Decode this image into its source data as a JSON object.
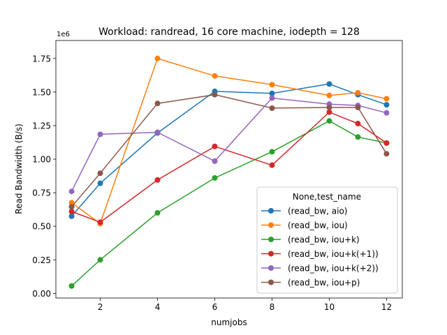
{
  "chart_data": {
    "type": "line",
    "title": "Workload: randread, 16 core machine, iodepth = 128",
    "xlabel": "numjobs",
    "ylabel": "Read Bandwidth (B/s)",
    "y_offset_label": "1e6",
    "xlim": [
      0.45,
      12.55
    ],
    "ylim": [
      -0.0345,
      1.884
    ],
    "x_ticks": [
      2,
      4,
      6,
      8,
      10,
      12
    ],
    "x_tick_labels": [
      "2",
      "4",
      "6",
      "8",
      "10",
      "12"
    ],
    "y_ticks": [
      0,
      0.25,
      0.5,
      0.75,
      1.0,
      1.25,
      1.5,
      1.75
    ],
    "y_tick_labels": [
      "0.00",
      "0.25",
      "0.50",
      "0.75",
      "1.00",
      "1.25",
      "1.50",
      "1.75"
    ],
    "grid": false,
    "legend_title": "None,test_name",
    "legend_position": "lower-right",
    "x": [
      1,
      2,
      4,
      6,
      8,
      10,
      11,
      12
    ],
    "series": [
      {
        "name": "(read_bw, aio)",
        "color": "#1f77b4",
        "values": [
          0.575,
          0.82,
          1.195,
          1.505,
          1.49,
          1.56,
          1.48,
          1.405
        ]
      },
      {
        "name": "(read_bw, iou)",
        "color": "#ff7f0e",
        "values": [
          0.675,
          0.52,
          1.75,
          1.62,
          1.555,
          1.475,
          1.495,
          1.45
        ]
      },
      {
        "name": "(read_bw, iou+k)",
        "color": "#2ca02c",
        "values": [
          0.055,
          0.25,
          0.6,
          0.86,
          1.055,
          1.285,
          1.165,
          1.12
        ]
      },
      {
        "name": "(read_bw, iou+k(+1))",
        "color": "#d62728",
        "values": [
          0.61,
          0.53,
          0.845,
          1.095,
          0.955,
          1.35,
          1.265,
          1.12
        ]
      },
      {
        "name": "(read_bw, iou+k(+2))",
        "color": "#9467bd",
        "values": [
          0.76,
          1.185,
          1.2,
          0.985,
          1.455,
          1.41,
          1.4,
          1.345
        ]
      },
      {
        "name": "(read_bw, iou+p)",
        "color": "#8c564b",
        "values": [
          0.645,
          0.895,
          1.415,
          1.48,
          1.38,
          1.385,
          1.385,
          1.04
        ]
      }
    ]
  }
}
